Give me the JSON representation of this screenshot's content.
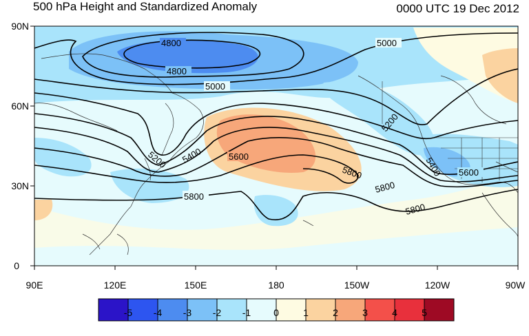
{
  "header": {
    "title": "500 hPa Height and Standardized Anomaly",
    "valid_time": "0000 UTC 19 Dec 2012"
  },
  "map": {
    "lat_labels": [
      "90N",
      "60N",
      "30N",
      "0"
    ],
    "lon_labels": [
      "90E",
      "120E",
      "150E",
      "180",
      "150W",
      "120W",
      "90W"
    ],
    "contour_labels": [
      "4800",
      "4800",
      "5000",
      "5000",
      "5200",
      "5200",
      "5400",
      "5400",
      "5600",
      "5600",
      "5800",
      "5800",
      "5800",
      "5800"
    ]
  },
  "colorbar": {
    "labels": [
      "-5",
      "-4",
      "-3",
      "-2",
      "-1",
      "0",
      "1",
      "2",
      "3",
      "4",
      "5"
    ],
    "colors": [
      "#2b14c8",
      "#2d55f0",
      "#4d8cf0",
      "#7cc1f7",
      "#a9e4fb",
      "#e6fbfd",
      "#fefbe2",
      "#fbd3a0",
      "#f7a77a",
      "#f3504a",
      "#e8303c",
      "#9e0a24"
    ]
  }
}
